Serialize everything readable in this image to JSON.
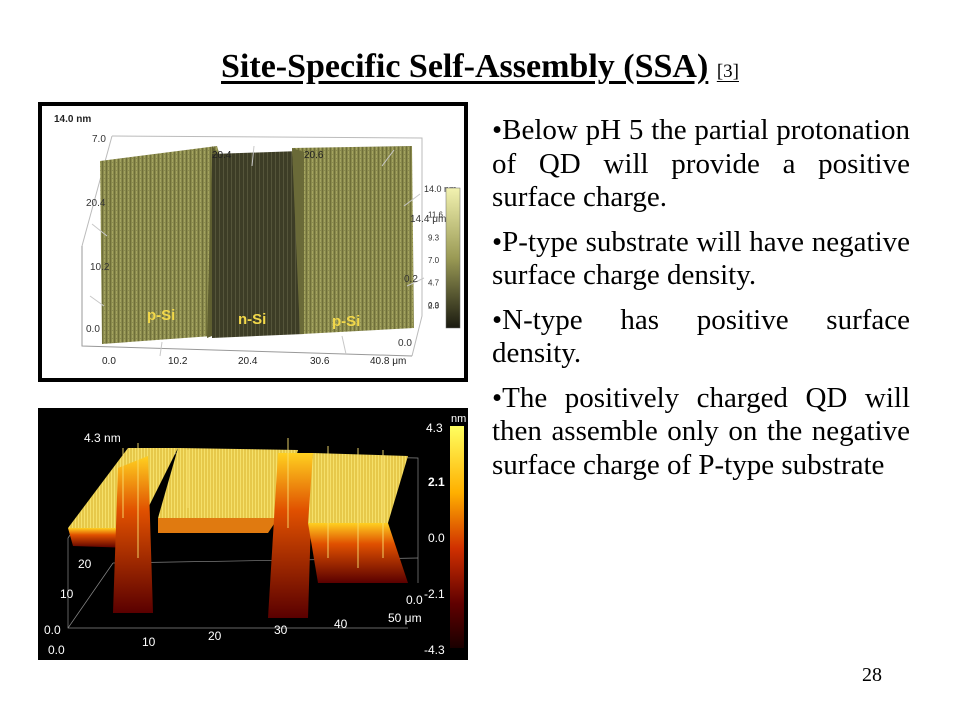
{
  "slide": {
    "title": "Site-Specific Self-Assembly (SSA)",
    "title_ref": "[3]",
    "page_number": "28"
  },
  "figure_top": {
    "z_max_label": "14.0 nm",
    "y_labels": [
      "7.0",
      "20.4",
      "10.2",
      "0.0"
    ],
    "top_labels": [
      "20.4",
      "20.6"
    ],
    "right_axis": [
      "14.0 nm",
      "14.4 μm",
      "0.2",
      "0.0"
    ],
    "x_ticks": [
      "0.0",
      "10.2",
      "20.4",
      "30.6",
      "40.8 μm"
    ],
    "region_labels": [
      "p-Si",
      "n-Si",
      "p-Si"
    ],
    "colorbar_ticks": [
      "14.0 nm",
      "11.6",
      "9.3",
      "7.0",
      "4.7",
      "2.3",
      "0.0"
    ]
  },
  "figure_bottom": {
    "z_max_label": "4.3 nm",
    "colorbar_unit": "nm",
    "colorbar_ticks": [
      "4.3",
      "2.1",
      "0.0",
      "-2.1",
      "-4.3"
    ],
    "y_ticks": [
      "20",
      "10",
      "0.0"
    ],
    "x_ticks": [
      "0.0",
      "10",
      "20",
      "30",
      "40",
      "50 μm"
    ],
    "right_y_zero": "0.0"
  },
  "bullets": [
    "•Below pH 5 the partial protonation of QD will provide a positive surface charge.",
    "•P-type substrate will have negative surface charge density.",
    "•N-type has positive surface density.",
    "•The positively charged QD will then assemble only on the negative surface charge of P-type substrate"
  ]
}
